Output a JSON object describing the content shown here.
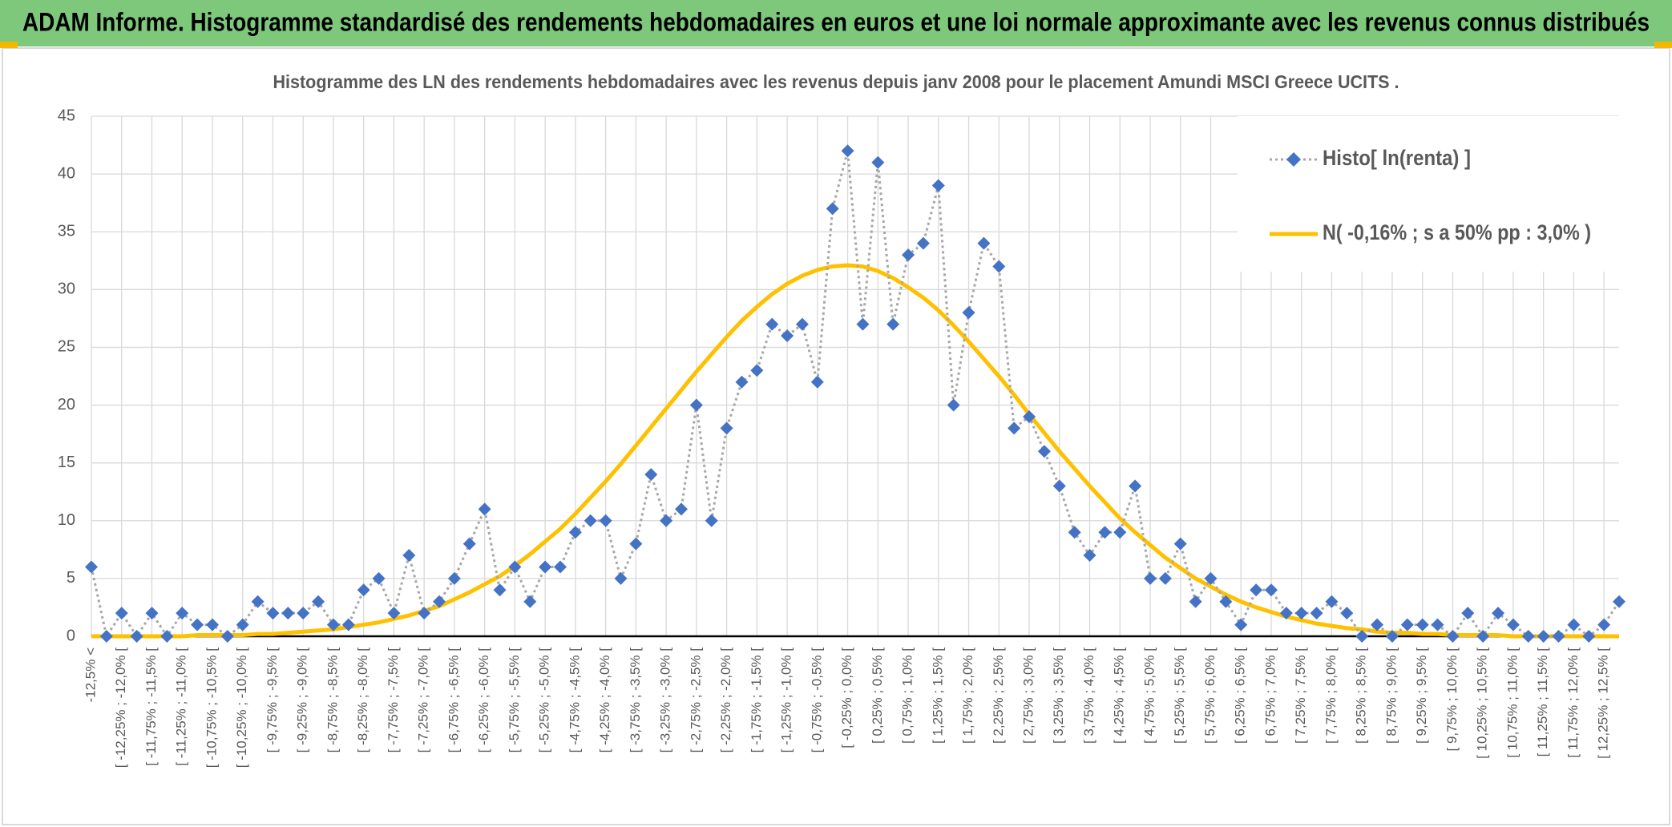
{
  "chart_data": {
    "type": "line",
    "title": "ADAM Informe. Histogramme standardisé des rendements hebdomadaires en euros et une loi normale approximante avec les revenus connus distribués",
    "subtitle": "Histogramme des LN des rendements hebdomadaires avec les revenus depuis janv 2008 pour le placement Amundi MSCI Greece UCITS .",
    "categories": [
      "-12,5% <",
      null,
      "[ -12,25% ; -12,0% [",
      null,
      "[ -11,75% ; -11,5% [",
      null,
      "[ -11,25% ; -11,0% [",
      null,
      "[ -10,75% ; -10,5% [",
      null,
      "[ -10,25% ; -10,0% [",
      null,
      "[ -9,75% ; -9,5% [",
      null,
      "[ -9,25% ; -9,0% [",
      null,
      "[ -8,75% ; -8,5% [",
      null,
      "[ -8,25% ; -8,0% [",
      null,
      "[ -7,75% ; -7,5% [",
      null,
      "[ -7,25% ; -7,0% [",
      null,
      "[ -6,75% ; -6,5% [",
      null,
      "[ -6,25% ; -6,0% [",
      null,
      "[ -5,75% ; -5,5% [",
      null,
      "[ -5,25% ; -5,0% [",
      null,
      "[ -4,75% ; -4,5% [",
      null,
      "[ -4,25% ; -4,0% [",
      null,
      "[ -3,75% ; -3,5% [",
      null,
      "[ -3,25% ; -3,0% [",
      null,
      "[ -2,75% ; -2,5% [",
      null,
      "[ -2,25% ; -2,0% [",
      null,
      "[ -1,75% ; -1,5% [",
      null,
      "[ -1,25% ; -1,0% [",
      null,
      "[ -0,75% ; -0,5% [",
      null,
      "[ -0,25% ; 0,0% [",
      null,
      "[ 0,25% ; 0,5% [",
      null,
      "[ 0,75% ; 1,0% [",
      null,
      "[ 1,25% ; 1,5% [",
      null,
      "[ 1,75% ; 2,0% [",
      null,
      "[ 2,25% ; 2,5% [",
      null,
      "[ 2,75% ; 3,0% [",
      null,
      "[ 3,25% ; 3,5% [",
      null,
      "[ 3,75% ; 4,0% [",
      null,
      "[ 4,25% ; 4,5% [",
      null,
      "[ 4,75% ; 5,0% [",
      null,
      "[ 5,25% ; 5,5% [",
      null,
      "[ 5,75% ; 6,0% [",
      null,
      "[ 6,25% ; 6,5% [",
      null,
      "[ 6,75% ; 7,0% [",
      null,
      "[ 7,25% ; 7,5% [",
      null,
      "[ 7,75% ; 8,0% [",
      null,
      "[ 8,25% ; 8,5% [",
      null,
      "[ 8,75% ; 9,0% [",
      null,
      "[ 9,25% ; 9,5% [",
      null,
      "[ 9,75% ; 10,0% [",
      null,
      "[ 10,25% ; 10,5% [",
      null,
      "[ 10,75% ; 11,0% [",
      null,
      "[ 11,25% ; 11,5% [",
      null,
      "[ 11,75% ; 12,0% [",
      null,
      "[ 12,25% ; 12,5% [",
      null
    ],
    "series": [
      {
        "name": "Histo[ ln(renta) ]",
        "color": "#4472c4",
        "line_color": "#a6a6a6",
        "line_style": "dotted",
        "marker": "diamond",
        "values": [
          6,
          0,
          2,
          0,
          2,
          0,
          2,
          1,
          1,
          0,
          1,
          3,
          2,
          2,
          2,
          3,
          1,
          1,
          4,
          5,
          2,
          7,
          2,
          3,
          5,
          8,
          11,
          4,
          6,
          3,
          6,
          6,
          9,
          10,
          10,
          5,
          8,
          14,
          10,
          11,
          20,
          10,
          18,
          22,
          23,
          27,
          26,
          27,
          22,
          37,
          42,
          27,
          41,
          27,
          33,
          34,
          39,
          20,
          28,
          34,
          32,
          18,
          19,
          16,
          13,
          9,
          7,
          9,
          9,
          13,
          5,
          5,
          8,
          3,
          5,
          3,
          1,
          4,
          4,
          2,
          2,
          2,
          3,
          2,
          0,
          1,
          0,
          1,
          1,
          1,
          0,
          2,
          0,
          2,
          1,
          0,
          0,
          0,
          1,
          0,
          1,
          3
        ]
      },
      {
        "name": "N( -0,16% ; s a 50% pp : 3,0% )",
        "color": "#ffc000",
        "line_style": "solid",
        "marker": "none",
        "values": [
          0,
          0,
          0,
          0,
          0,
          0,
          0,
          0.1,
          0.1,
          0.1,
          0.1,
          0.2,
          0.2,
          0.3,
          0.4,
          0.5,
          0.6,
          0.8,
          1,
          1.2,
          1.5,
          1.8,
          2.2,
          2.6,
          3.2,
          3.8,
          4.5,
          5.2,
          6.1,
          7.1,
          8.2,
          9.3,
          10.6,
          12,
          13.4,
          14.9,
          16.5,
          18.1,
          19.7,
          21.3,
          22.9,
          24.4,
          25.9,
          27.3,
          28.5,
          29.6,
          30.5,
          31.2,
          31.7,
          32,
          32.1,
          32,
          31.6,
          31,
          30.2,
          29.3,
          28.2,
          26.9,
          25.5,
          24,
          22.5,
          20.9,
          19.2,
          17.6,
          16,
          14.5,
          13,
          11.6,
          10.2,
          9,
          7.9,
          6.8,
          5.9,
          5,
          4.3,
          3.6,
          3,
          2.5,
          2.1,
          1.7,
          1.4,
          1.1,
          0.9,
          0.7,
          0.6,
          0.4,
          0.3,
          0.3,
          0.2,
          0.2,
          0.1,
          0.1,
          0.1,
          0.1,
          0,
          0,
          0,
          0,
          0,
          0,
          0,
          0
        ]
      }
    ],
    "ylim": [
      0,
      45
    ],
    "yticks": [
      0,
      5,
      10,
      15,
      20,
      25,
      30,
      35,
      40,
      45
    ],
    "grid": true,
    "legend": "upper right"
  }
}
